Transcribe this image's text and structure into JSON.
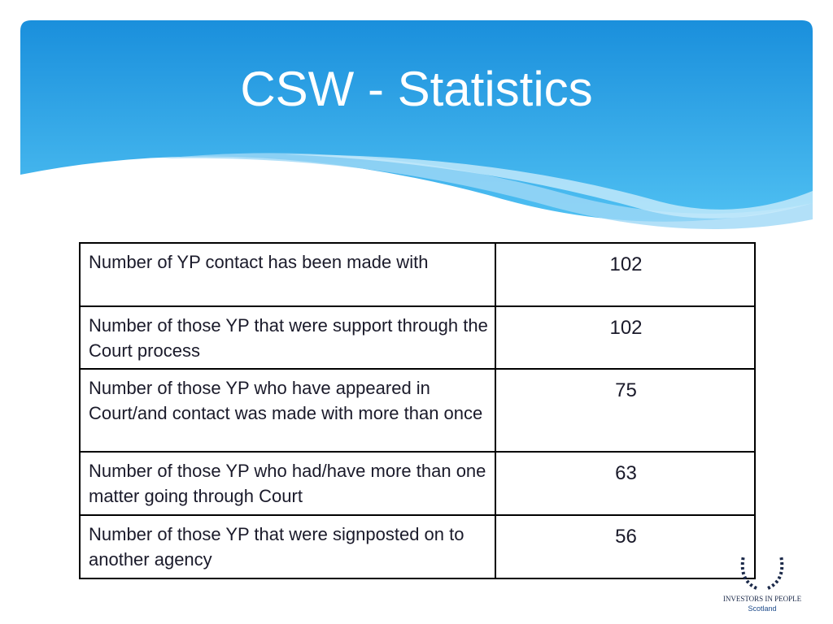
{
  "header": {
    "title": "CSW - Statistics"
  },
  "table": {
    "rows": [
      [
        "Number of YP contact has been made with",
        102
      ],
      [
        "Number of those YP that were support through the Court process",
        102
      ],
      [
        "Number of those YP who have appeared in Court/and contact was made with more than once",
        75
      ],
      [
        "Number of those YP who had/have more than one matter going through Court",
        63
      ],
      [
        "Number of those YP that were signposted on to another agency",
        56
      ]
    ]
  },
  "logo": {
    "name": "INVESTORS IN PEOPLE",
    "region": "Scotland"
  }
}
